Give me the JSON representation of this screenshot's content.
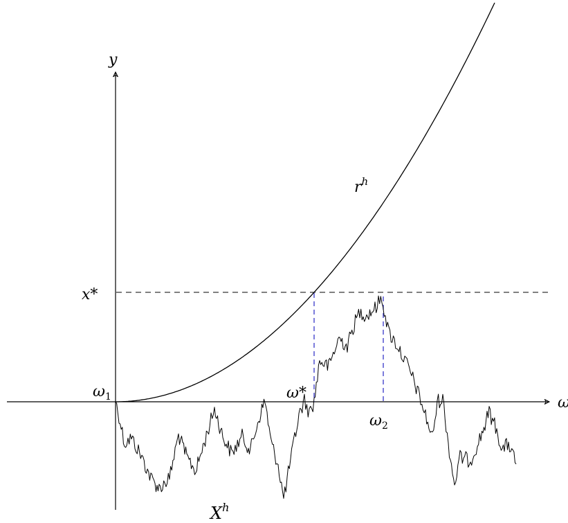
{
  "labels": {
    "y_axis": "y",
    "x_axis": "ω",
    "x_star": "x*",
    "omega_1": "ω",
    "omega_1_sub": "1",
    "omega_star": "ω*",
    "omega_2": "ω",
    "omega_2_sub": "2",
    "r_h": "r",
    "r_h_sup": "h",
    "X_h": "X",
    "X_h_sup": "h"
  },
  "colors": {
    "axes": "#000000",
    "threshold_line": "#000000",
    "marker_lines": "#3535c8"
  },
  "elements": {
    "threshold_line_style": "dashed",
    "marker_line_style": "dashed",
    "random_path": "rough random-walk path starting at ω1, rising through the threshold near ω*, peaking at ω2"
  }
}
